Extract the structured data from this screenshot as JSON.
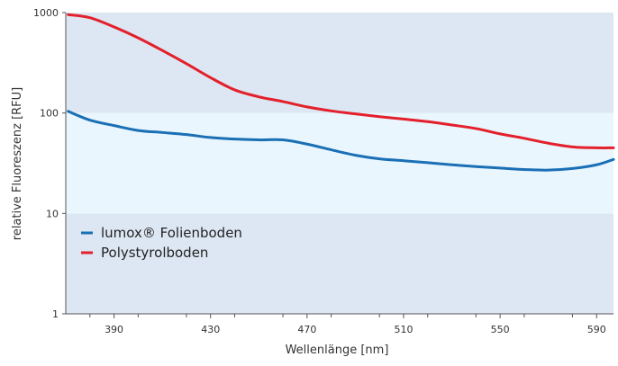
{
  "chart_data": {
    "type": "line",
    "title": "",
    "xlabel": "Wellenlänge [nm]",
    "ylabel": "relative Fluoreszenz [RFU]",
    "xlim": [
      370,
      597
    ],
    "ylim": [
      1,
      1000
    ],
    "yscale": "log",
    "x_ticks": [
      390,
      430,
      470,
      510,
      550,
      590
    ],
    "y_ticks": [
      1,
      10,
      100,
      1000
    ],
    "y_tick_labels": [
      "1",
      "10",
      "100",
      "1000"
    ],
    "grid": false,
    "bands": [
      {
        "from": 1,
        "to": 10,
        "color": "#dde7f3"
      },
      {
        "from": 10,
        "to": 100,
        "color": "#e9f6fd"
      },
      {
        "from": 100,
        "to": 1000,
        "color": "#dde7f3"
      }
    ],
    "legend_position": "lower-left",
    "series": [
      {
        "name": "lumox® Folienboden",
        "color": "#1a6fb5",
        "x": [
          371,
          380,
          390,
          400,
          410,
          420,
          430,
          440,
          450,
          460,
          470,
          480,
          490,
          500,
          510,
          520,
          530,
          540,
          550,
          560,
          570,
          580,
          590,
          597
        ],
        "y": [
          104,
          85,
          75,
          67,
          64,
          61,
          57,
          55,
          54,
          54,
          49,
          43,
          38,
          35,
          33.5,
          32,
          30.5,
          29.3,
          28.3,
          27.4,
          27,
          28,
          30.5,
          34.5
        ]
      },
      {
        "name": "Polystyrolboden",
        "color": "#e3202b",
        "x": [
          371,
          380,
          390,
          400,
          410,
          420,
          430,
          440,
          450,
          460,
          470,
          480,
          490,
          500,
          510,
          520,
          530,
          540,
          550,
          560,
          570,
          580,
          590,
          597
        ],
        "y": [
          955,
          890,
          720,
          560,
          420,
          310,
          225,
          170,
          145,
          130,
          115,
          105,
          98,
          92,
          87,
          82,
          76,
          70,
          62,
          56,
          50,
          46,
          45,
          45
        ]
      }
    ]
  }
}
